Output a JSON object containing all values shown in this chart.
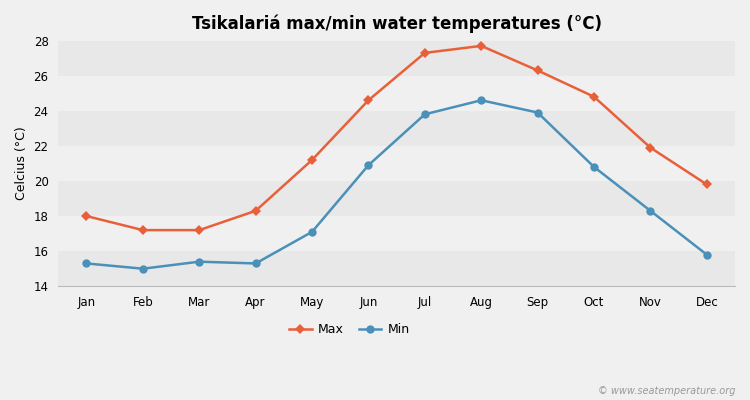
{
  "title": "Tsikalariá max/min water temperatures (°C)",
  "ylabel": "Celcius (°C)",
  "months": [
    "Jan",
    "Feb",
    "Mar",
    "Apr",
    "May",
    "Jun",
    "Jul",
    "Aug",
    "Sep",
    "Oct",
    "Nov",
    "Dec"
  ],
  "max_values": [
    18.0,
    17.2,
    17.2,
    18.3,
    21.2,
    24.6,
    27.3,
    27.7,
    26.3,
    24.8,
    21.9,
    19.8
  ],
  "min_values": [
    15.3,
    15.0,
    15.4,
    15.3,
    17.1,
    20.9,
    23.8,
    24.6,
    23.9,
    20.8,
    18.3,
    15.8
  ],
  "max_color": "#e8603a",
  "min_color": "#4a90b8",
  "figure_bg": "#f0f0f0",
  "band_colors": [
    "#e8e8e8",
    "#f0f0f0"
  ],
  "ylim": [
    14,
    28
  ],
  "yticks": [
    14,
    16,
    18,
    20,
    22,
    24,
    26,
    28
  ],
  "legend_labels": [
    "Max",
    "Min"
  ],
  "watermark": "© www.seatemperature.org",
  "title_fontsize": 12,
  "axis_label_fontsize": 9,
  "tick_fontsize": 8.5,
  "legend_fontsize": 9,
  "marker_size": 5,
  "line_width": 1.8
}
